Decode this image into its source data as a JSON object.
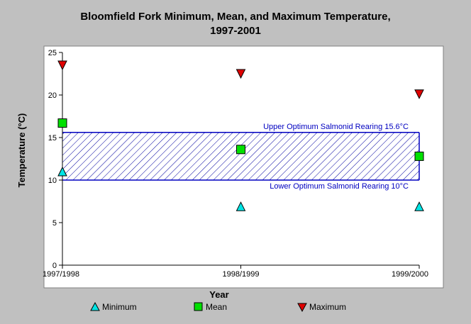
{
  "chart_data": {
    "type": "scatter",
    "title_line1": "Bloomfield Fork Minimum, Mean, and Maximum Temperature,",
    "title_line2": "1997-2001",
    "xlabel": "Year",
    "ylabel": "Temperature (°C)",
    "categories": [
      "1997/1998",
      "1998/1999",
      "1999/2000"
    ],
    "ylim": [
      0,
      25
    ],
    "yticks": [
      0,
      5,
      10,
      15,
      20,
      25
    ],
    "series": [
      {
        "name": "Minimum",
        "marker": "triangle-up",
        "color": "#00e5e5",
        "values": [
          11.0,
          6.9,
          6.9
        ]
      },
      {
        "name": "Mean",
        "marker": "square",
        "color": "#00e000",
        "values": [
          16.7,
          13.6,
          12.8
        ]
      },
      {
        "name": "Maximum",
        "marker": "triangle-down",
        "color": "#e00000",
        "values": [
          23.5,
          22.5,
          20.1
        ]
      }
    ],
    "band": {
      "lower": 10,
      "upper": 15.6,
      "upper_label": "Upper Optimum Salmonid Rearing 15.6°C",
      "lower_label": "Lower Optimum Salmonid Rearing 10°C",
      "color": "#0000c0"
    },
    "grid": false,
    "legend_position": "bottom"
  }
}
